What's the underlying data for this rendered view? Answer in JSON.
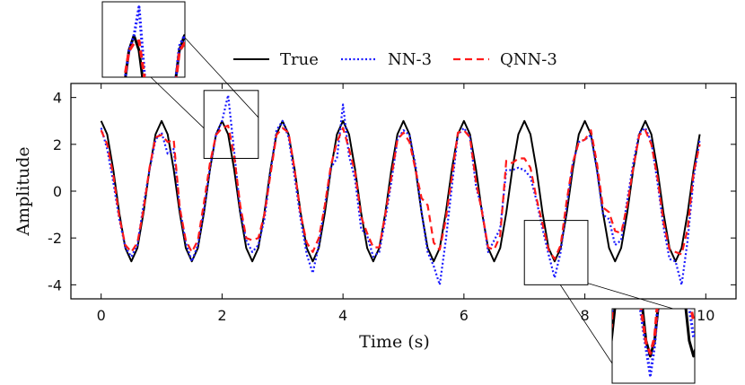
{
  "chart_data": {
    "type": "line",
    "title": "",
    "xlabel": "Time (s)",
    "ylabel": "Amplitude",
    "xlim": [
      -0.5,
      10.5
    ],
    "ylim": [
      -4.6,
      4.6
    ],
    "xticks": [
      0,
      2,
      4,
      6,
      8,
      10
    ],
    "yticks": [
      -4,
      -2,
      0,
      2,
      4
    ],
    "grid": false,
    "legend_position": "top",
    "series": [
      {
        "name": "True",
        "color": "#000000",
        "dash": "solid",
        "x": [
          0,
          0.1,
          0.2,
          0.3,
          0.4,
          0.5,
          0.6,
          0.7,
          0.8,
          0.9,
          1,
          1.1,
          1.2,
          1.3,
          1.4,
          1.5,
          1.6,
          1.7,
          1.8,
          1.9,
          2,
          2.1,
          2.2,
          2.3,
          2.4,
          2.5,
          2.6,
          2.7,
          2.8,
          2.9,
          3,
          3.1,
          3.2,
          3.3,
          3.4,
          3.5,
          3.6,
          3.7,
          3.8,
          3.9,
          4,
          4.1,
          4.2,
          4.3,
          4.4,
          4.5,
          4.6,
          4.7,
          4.8,
          4.9,
          5,
          5.1,
          5.2,
          5.3,
          5.4,
          5.5,
          5.6,
          5.7,
          5.8,
          5.9,
          6,
          6.1,
          6.2,
          6.3,
          6.4,
          6.5,
          6.6,
          6.7,
          6.8,
          6.9,
          7,
          7.1,
          7.2,
          7.3,
          7.4,
          7.5,
          7.6,
          7.7,
          7.8,
          7.9,
          8,
          8.1,
          8.2,
          8.3,
          8.4,
          8.5,
          8.6,
          8.7,
          8.8,
          8.9,
          9,
          9.1,
          9.2,
          9.3,
          9.4,
          9.5,
          9.6,
          9.7,
          9.8,
          9.9
        ],
        "y": [
          3,
          2.43,
          0.93,
          -0.93,
          -2.43,
          -3,
          -2.43,
          -0.93,
          0.93,
          2.43,
          3,
          2.43,
          0.93,
          -0.93,
          -2.43,
          -3,
          -2.43,
          -0.93,
          0.93,
          2.43,
          3,
          2.43,
          0.93,
          -0.93,
          -2.43,
          -3,
          -2.43,
          -0.93,
          0.93,
          2.43,
          3,
          2.43,
          0.93,
          -0.93,
          -2.43,
          -3,
          -2.43,
          -0.93,
          0.93,
          2.43,
          3,
          2.43,
          0.93,
          -0.93,
          -2.43,
          -3,
          -2.43,
          -0.93,
          0.93,
          2.43,
          3,
          2.43,
          0.93,
          -0.93,
          -2.43,
          -3,
          -2.43,
          -0.93,
          0.93,
          2.43,
          3,
          2.43,
          0.93,
          -0.93,
          -2.43,
          -3,
          -2.43,
          -0.93,
          0.93,
          2.43,
          3,
          2.43,
          0.93,
          -0.93,
          -2.43,
          -3,
          -2.43,
          -0.93,
          0.93,
          2.43,
          3,
          2.43,
          0.93,
          -0.93,
          -2.43,
          -3,
          -2.43,
          -0.93,
          0.93,
          2.43,
          3,
          2.43,
          0.93,
          -0.93,
          -2.43,
          -3,
          -2.43,
          -0.93,
          0.93,
          2.43
        ]
      },
      {
        "name": "NN-3",
        "color": "#1a1aff",
        "dash": "dotted",
        "x": [
          0,
          0.1,
          0.2,
          0.3,
          0.4,
          0.5,
          0.6,
          0.7,
          0.8,
          0.9,
          1,
          1.1,
          1.2,
          1.3,
          1.4,
          1.5,
          1.6,
          1.7,
          1.8,
          1.9,
          2,
          2.1,
          2.2,
          2.3,
          2.4,
          2.5,
          2.6,
          2.7,
          2.8,
          2.9,
          3,
          3.1,
          3.2,
          3.3,
          3.4,
          3.5,
          3.6,
          3.7,
          3.8,
          3.9,
          4,
          4.1,
          4.2,
          4.3,
          4.4,
          4.5,
          4.6,
          4.7,
          4.8,
          4.9,
          5,
          5.1,
          5.2,
          5.3,
          5.4,
          5.5,
          5.6,
          5.7,
          5.8,
          5.9,
          6,
          6.1,
          6.2,
          6.3,
          6.4,
          6.5,
          6.6,
          6.7,
          6.8,
          6.9,
          7,
          7.1,
          7.2,
          7.3,
          7.4,
          7.5,
          7.6,
          7.7,
          7.8,
          7.9,
          8,
          8.1,
          8.2,
          8.3,
          8.4,
          8.5,
          8.6,
          8.7,
          8.8,
          8.9,
          9,
          9.1,
          9.2,
          9.3,
          9.4,
          9.5,
          9.6,
          9.7,
          9.8,
          9.9
        ],
        "y": [
          2.7,
          1.8,
          0.4,
          -1.2,
          -2.4,
          -2.8,
          -2.3,
          -0.6,
          0.9,
          2.2,
          2.5,
          1.6,
          1.8,
          -0.7,
          -2.2,
          -3,
          -2.3,
          -0.8,
          1,
          2.4,
          3,
          4.1,
          1.7,
          -0.8,
          -2.1,
          -2.6,
          -2.3,
          -1.2,
          0.8,
          2.6,
          3,
          2.3,
          0.6,
          -1.2,
          -2.7,
          -3.5,
          -2.3,
          -0.6,
          1,
          1.4,
          3.7,
          1.5,
          0.5,
          -1.6,
          -1.9,
          -2.8,
          -2.6,
          -1.2,
          0.4,
          2.2,
          2.6,
          2.4,
          1.1,
          -0.9,
          -2.6,
          -3.2,
          -4,
          -2.1,
          0.2,
          2.4,
          2.7,
          2.3,
          0.2,
          -0.8,
          -2.6,
          -2.1,
          -1.6,
          0.9,
          0.9,
          1,
          0.9,
          0.6,
          -0.4,
          -1.6,
          -2.7,
          -3.7,
          -2.6,
          -0.6,
          1.2,
          2.1,
          2.2,
          2.4,
          0.9,
          -1,
          -1.2,
          -2.3,
          -2.1,
          -0.4,
          1.2,
          2.5,
          2.7,
          2.1,
          0.4,
          -1.5,
          -2.9,
          -3,
          -4,
          -2.1,
          0.6,
          2.2
        ]
      },
      {
        "name": "QNN-3",
        "color": "#ff1a1a",
        "dash": "dashed",
        "x": [
          0,
          0.1,
          0.2,
          0.3,
          0.4,
          0.5,
          0.6,
          0.7,
          0.8,
          0.9,
          1,
          1.1,
          1.2,
          1.3,
          1.4,
          1.5,
          1.6,
          1.7,
          1.8,
          1.9,
          2,
          2.1,
          2.2,
          2.3,
          2.4,
          2.5,
          2.6,
          2.7,
          2.8,
          2.9,
          3,
          3.1,
          3.2,
          3.3,
          3.4,
          3.5,
          3.6,
          3.7,
          3.8,
          3.9,
          4,
          4.1,
          4.2,
          4.3,
          4.4,
          4.5,
          4.6,
          4.7,
          4.8,
          4.9,
          5,
          5.1,
          5.2,
          5.3,
          5.4,
          5.5,
          5.6,
          5.7,
          5.8,
          5.9,
          6,
          6.1,
          6.2,
          6.3,
          6.4,
          6.5,
          6.6,
          6.7,
          6.8,
          6.9,
          7,
          7.1,
          7.2,
          7.3,
          7.4,
          7.5,
          7.6,
          7.7,
          7.8,
          7.9,
          8,
          8.1,
          8.2,
          8.3,
          8.4,
          8.5,
          8.6,
          8.7,
          8.8,
          8.9,
          9,
          9.1,
          9.2,
          9.3,
          9.4,
          9.5,
          9.6,
          9.7,
          9.8,
          9.9
        ],
        "y": [
          2.6,
          2,
          0.7,
          -1.1,
          -2.3,
          -2.6,
          -2.2,
          -0.8,
          1,
          2.3,
          2.4,
          2.1,
          2.2,
          -0.7,
          -2.1,
          -2.6,
          -2.1,
          -0.5,
          1.2,
          2.4,
          2.7,
          2.8,
          1.5,
          -0.6,
          -2,
          -2.1,
          -2,
          -1,
          0.7,
          2.4,
          2.7,
          2.5,
          0.9,
          -1,
          -2.2,
          -2.6,
          -2,
          -0.6,
          1.1,
          2.1,
          2.7,
          1.8,
          0.8,
          -1.1,
          -1.8,
          -2.4,
          -2.4,
          -1,
          0.6,
          2.2,
          2.5,
          2.1,
          0.9,
          -0.3,
          -0.6,
          -2.2,
          -2.5,
          -1.2,
          0.6,
          2.5,
          2.6,
          2.3,
          0.4,
          -0.9,
          -2.4,
          -2.5,
          -1.9,
          1.3,
          1.2,
          1.4,
          1.4,
          1,
          -0.3,
          -1.4,
          -2.5,
          -2.9,
          -2.3,
          -0.4,
          1.2,
          2.1,
          2.2,
          2.6,
          1.2,
          -0.7,
          -0.9,
          -1.7,
          -1.8,
          -0.6,
          1,
          2.4,
          2.6,
          2,
          0.6,
          -1.3,
          -2.5,
          -2.6,
          -2.7,
          -1.6,
          0.8,
          2
        ]
      }
    ],
    "inset_zooms": [
      {
        "x_range": [
          1.7,
          2.6
        ],
        "y_range": [
          1.4,
          4.3
        ]
      },
      {
        "x_range": [
          7.0,
          8.05
        ],
        "y_range": [
          -4.0,
          -1.25
        ]
      }
    ]
  }
}
